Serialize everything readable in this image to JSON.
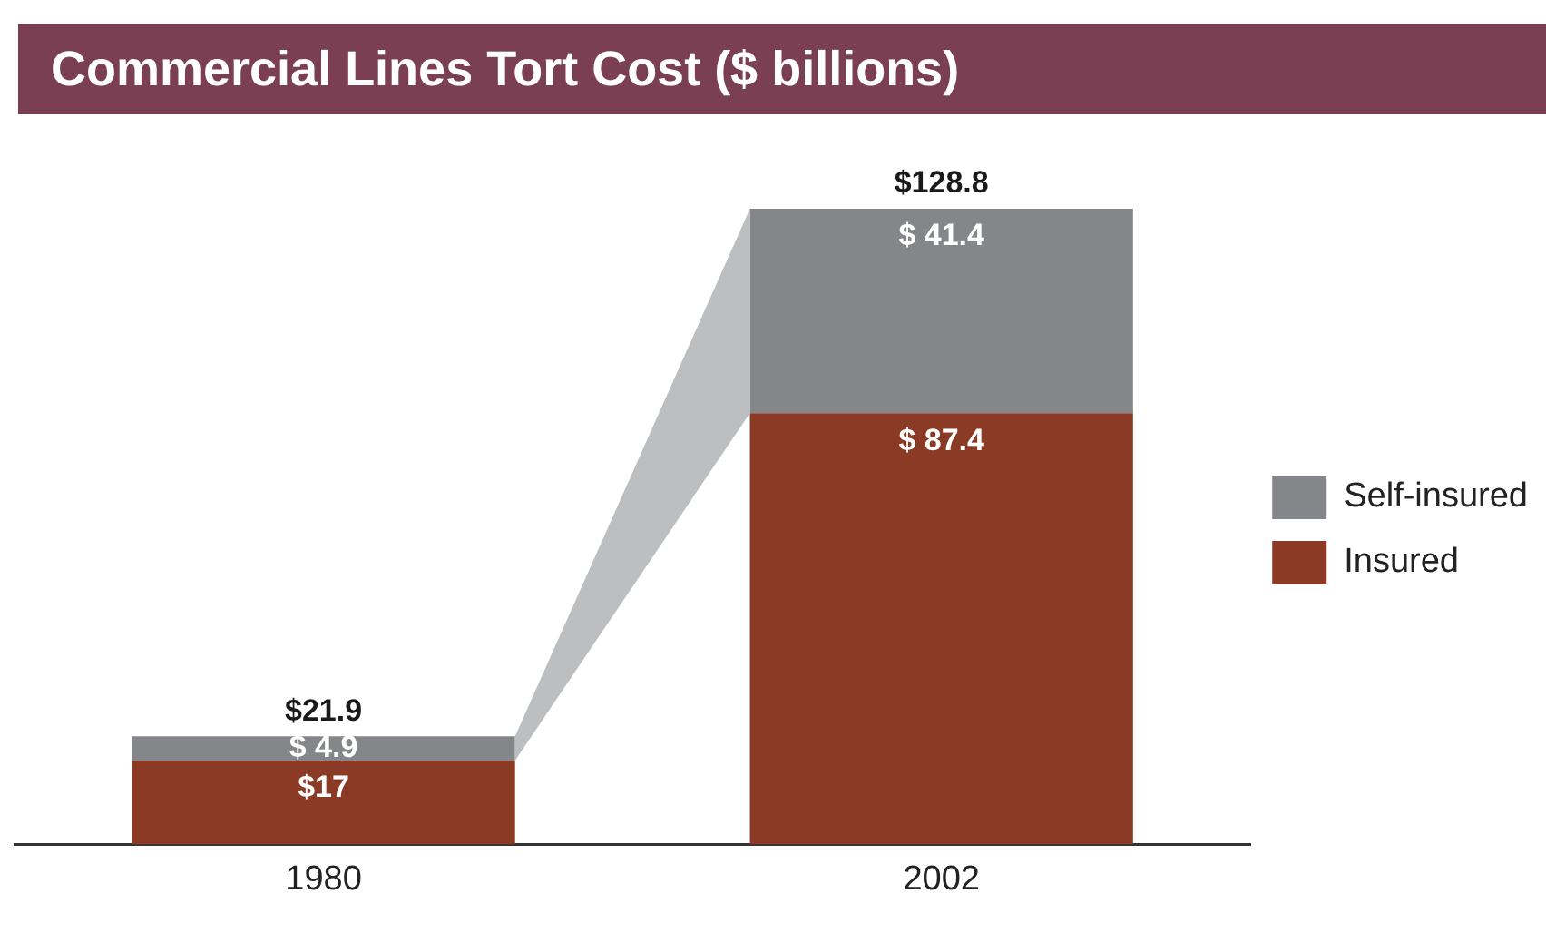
{
  "chart_data": {
    "type": "bar",
    "title": "Commercial Lines Tort Cost ($ billions)",
    "categories": [
      "1980",
      "2002"
    ],
    "stacked": true,
    "series": [
      {
        "name": "Insured",
        "color": "#8a3a25",
        "values": [
          17,
          87.4
        ],
        "value_labels": [
          "$17",
          "$ 87.4"
        ]
      },
      {
        "name": "Self-insured",
        "color": "#858689",
        "values": [
          4.9,
          41.4
        ],
        "value_labels": [
          "$ 4.9",
          "$ 41.4"
        ]
      }
    ],
    "totals": [
      "$21.9",
      "$128.8"
    ],
    "legend": "right",
    "grid": false
  }
}
